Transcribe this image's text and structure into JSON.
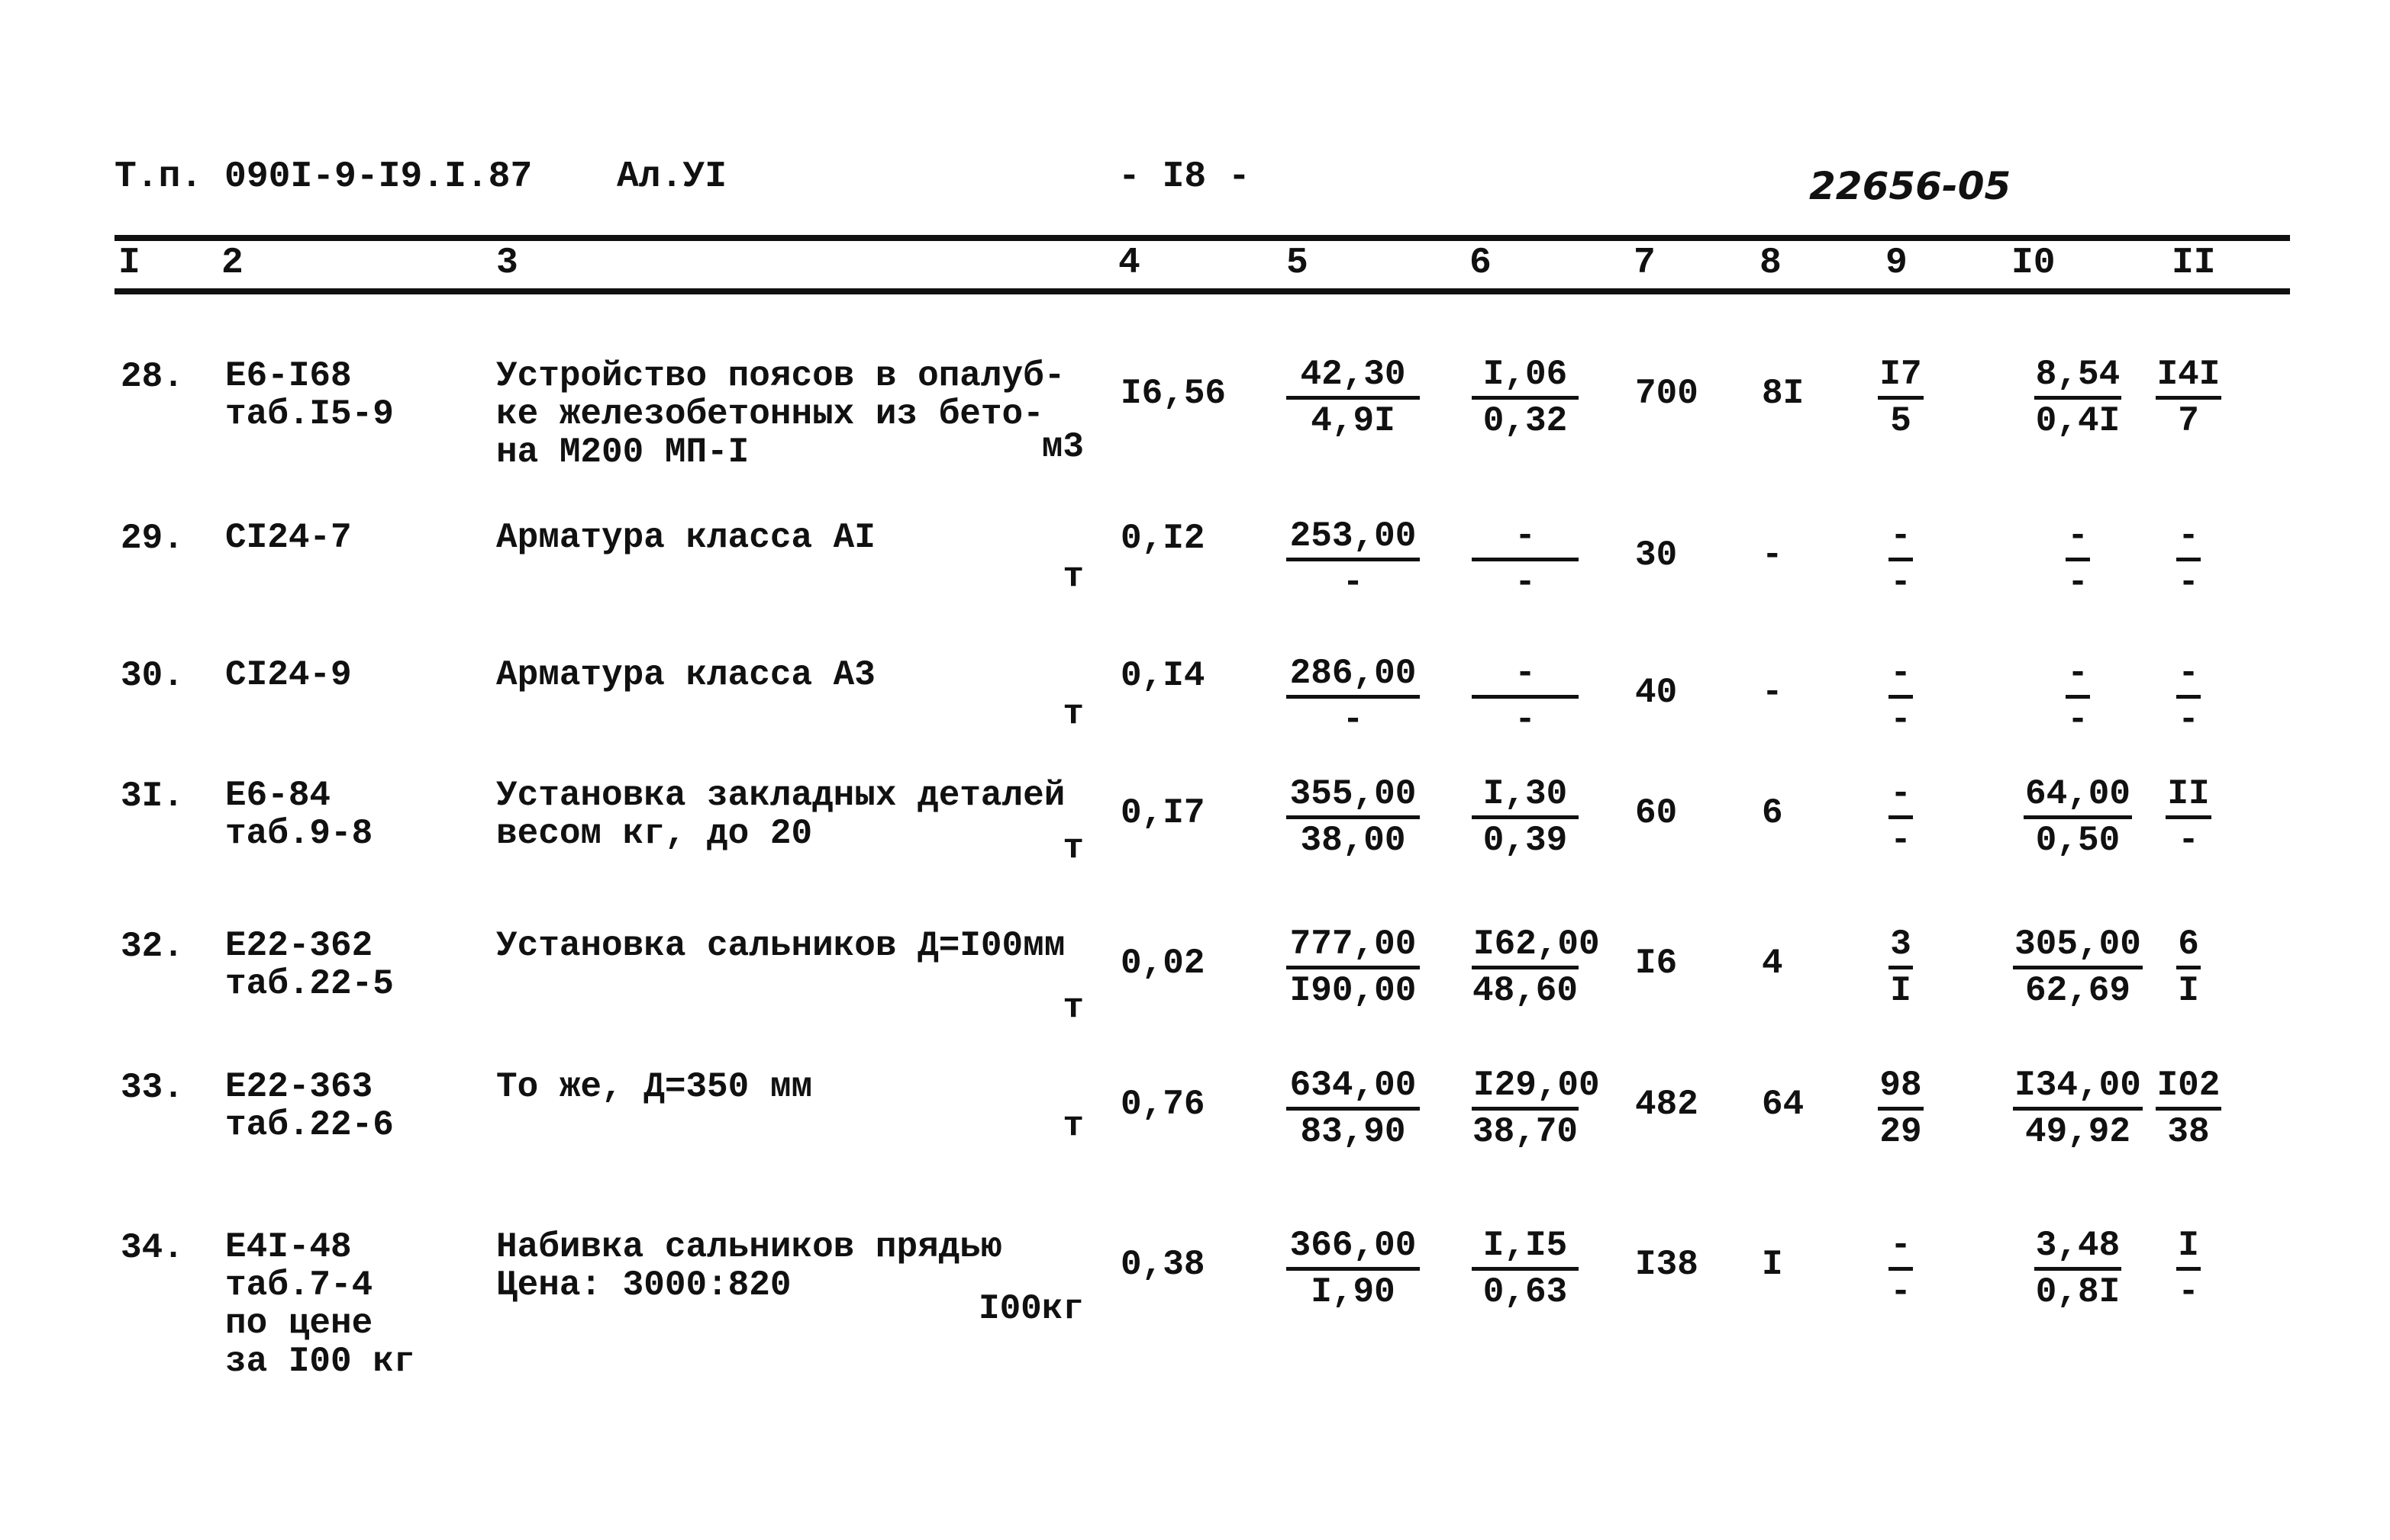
{
  "header": {
    "project": "Т.п.  090I-9-I9.I.87",
    "album": "Ал.УI",
    "page": "- I8 -",
    "doc_number": "22656-05"
  },
  "columns": [
    "I",
    "2",
    "3",
    "4",
    "5",
    "6",
    "7",
    "8",
    "9",
    "I0",
    "II"
  ],
  "rows": [
    {
      "num": "28.",
      "code": [
        "Е6-I68",
        "таб.I5-9"
      ],
      "desc": [
        "Устройство поясов в опалуб-",
        "ке железобетонных из бето-",
        "на М200 МП-I"
      ],
      "unit": "м3",
      "c4": "I6,56",
      "c5": [
        "42,30",
        "4,9I"
      ],
      "c6": [
        "I,06",
        "0,32"
      ],
      "c7": "700",
      "c8": "8I",
      "c9": [
        "I7",
        "5"
      ],
      "c10": [
        "8,54",
        "0,4I"
      ],
      "c11": [
        "I4I",
        "7"
      ]
    },
    {
      "num": "29.",
      "code": [
        "СI24-7"
      ],
      "desc": [
        "Арматура класса АI"
      ],
      "unit": "т",
      "c4": "0,I2",
      "c5": [
        "253,00",
        "-"
      ],
      "c6": [
        "-",
        "-"
      ],
      "c7": "30",
      "c8": "-",
      "c9": [
        "-",
        "-"
      ],
      "c10": [
        "-",
        "-"
      ],
      "c11": [
        "-",
        "-"
      ]
    },
    {
      "num": "30.",
      "code": [
        "СI24-9"
      ],
      "desc": [
        "Арматура класса А3"
      ],
      "unit": "т",
      "c4": "0,I4",
      "c5": [
        "286,00",
        "-"
      ],
      "c6": [
        "-",
        "-"
      ],
      "c7": "40",
      "c8": "-",
      "c9": [
        "-",
        "-"
      ],
      "c10": [
        "-",
        "-"
      ],
      "c11": [
        "-",
        "-"
      ]
    },
    {
      "num": "3I.",
      "code": [
        "Е6-84",
        "таб.9-8"
      ],
      "desc": [
        "Установка закладных деталей",
        "весом кг, до 20"
      ],
      "unit": "т",
      "c4": "0,I7",
      "c5": [
        "355,00",
        "38,00"
      ],
      "c6": [
        "I,30",
        "0,39"
      ],
      "c7": "60",
      "c8": "6",
      "c9": [
        "-",
        "-"
      ],
      "c10": [
        "64,00",
        "0,50"
      ],
      "c11": [
        "II",
        "-"
      ]
    },
    {
      "num": "32.",
      "code": [
        "Е22-362",
        "таб.22-5"
      ],
      "desc": [
        "Установка сальников Д=I00мм"
      ],
      "unit": "т",
      "c4": "0,02",
      "c5": [
        "777,00",
        "I90,00"
      ],
      "c6": [
        "I62,00",
        "48,60"
      ],
      "c7": "I6",
      "c8": "4",
      "c9": [
        "3",
        "I"
      ],
      "c10": [
        "305,00",
        "62,69"
      ],
      "c11": [
        "6",
        "I"
      ]
    },
    {
      "num": "33.",
      "code": [
        "Е22-363",
        "таб.22-6"
      ],
      "desc": [
        "То же, Д=350 мм"
      ],
      "unit": "т",
      "c4": "0,76",
      "c5": [
        "634,00",
        "83,90"
      ],
      "c6": [
        "I29,00",
        "38,70"
      ],
      "c7": "482",
      "c8": "64",
      "c9": [
        "98",
        "29"
      ],
      "c10": [
        "I34,00",
        "49,92"
      ],
      "c11": [
        "I02",
        "38"
      ]
    },
    {
      "num": "34.",
      "code": [
        "Е4I-48",
        "таб.7-4",
        "по цене",
        "за I00 кг"
      ],
      "desc": [
        "Набивка сальников прядью",
        "Цена: 3000:820"
      ],
      "unit": "I00кг",
      "c4": "0,38",
      "c5": [
        "366,00",
        "I,90"
      ],
      "c6": [
        "I,I5",
        "0,63"
      ],
      "c7": "I38",
      "c8": "I",
      "c9": [
        "-",
        "-"
      ],
      "c10": [
        "3,48",
        "0,8I"
      ],
      "c11": [
        "I",
        "-"
      ]
    }
  ]
}
